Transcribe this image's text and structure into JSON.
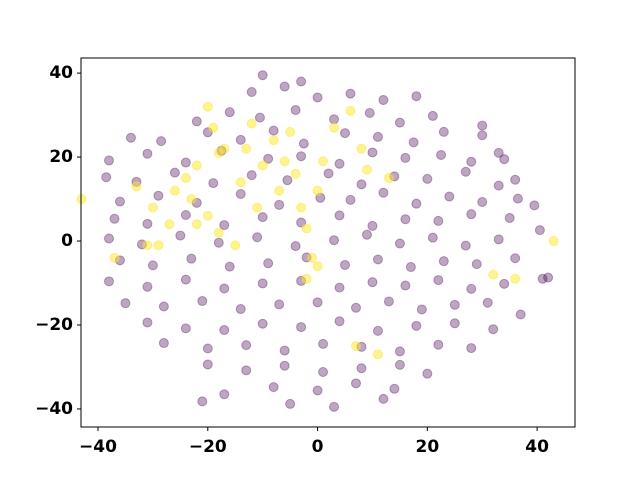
{
  "chart_data": {
    "type": "scatter",
    "xlim": [
      -43.1,
      46.9
    ],
    "ylim": [
      -44.3,
      43.6
    ],
    "xticks": [
      {
        "value": -40,
        "label": "−40"
      },
      {
        "value": -20,
        "label": "−20"
      },
      0,
      20,
      40
    ],
    "yticks": [
      {
        "value": -40,
        "label": "−40"
      },
      {
        "value": -20,
        "label": "−20"
      },
      0,
      20,
      40
    ],
    "series": [
      {
        "color": "#440154",
        "x": [
          -12,
          -6,
          0,
          6,
          12,
          18,
          -10,
          -3,
          -22,
          -16,
          -10.5,
          -4,
          3,
          9.5,
          15,
          21,
          30,
          -34,
          -28.5,
          -20,
          -14,
          -8,
          -2.5,
          5,
          11,
          17.5,
          23,
          30,
          33,
          -38,
          -31,
          -24,
          -17.5,
          -9,
          -3,
          4,
          10,
          16,
          22.5,
          28,
          34,
          -38.5,
          -33,
          -26,
          -19,
          -12,
          -5.5,
          2,
          8,
          14,
          20,
          27,
          33,
          36,
          -36,
          -29,
          -22,
          -14,
          -7,
          0.5,
          6,
          12,
          18,
          24,
          30,
          36.5,
          -37,
          -31,
          -24,
          -17,
          -10,
          -3,
          4,
          10,
          16,
          22,
          28,
          35,
          39.5,
          -38,
          -32,
          -25,
          -18,
          -11,
          -4,
          3,
          9,
          15,
          21,
          27,
          33,
          40.5,
          -36,
          -30,
          -23,
          -16,
          -9,
          -2,
          5,
          11,
          17,
          23,
          29,
          36,
          42,
          -38,
          -31,
          -24,
          -17,
          -10,
          -3,
          4,
          10,
          16,
          22,
          28,
          34,
          41,
          -35,
          -28,
          -21,
          -14,
          -7,
          0,
          7,
          13,
          19,
          25,
          31,
          37,
          -31,
          -24,
          -17,
          -10,
          -3,
          4,
          11,
          18,
          25,
          32,
          -28,
          -20,
          -13,
          -6,
          1,
          8,
          15,
          22,
          28,
          -20,
          -13,
          -6,
          1,
          8,
          15,
          20,
          -17,
          -8,
          0,
          7,
          14,
          -21,
          -5,
          3,
          12
        ],
        "values": [
          35.5,
          36.8,
          34.2,
          35.1,
          33.6,
          34.5,
          39.5,
          38,
          28.5,
          30.7,
          29.4,
          31.2,
          29,
          30.5,
          28.2,
          29.8,
          27.5,
          24.6,
          23.8,
          25.9,
          24.1,
          26.3,
          23.2,
          25.7,
          24.8,
          23.5,
          26,
          25.2,
          21,
          19.2,
          20.8,
          18.7,
          21.5,
          19.6,
          20.2,
          18.4,
          21.1,
          19.8,
          20.5,
          18.9,
          19.5,
          15.2,
          14.1,
          16.3,
          13.8,
          15.7,
          14.5,
          16.1,
          13.5,
          15.4,
          14.8,
          16.5,
          13.2,
          14.6,
          9.4,
          10.8,
          9.1,
          11.2,
          8.6,
          10.3,
          9.8,
          11.5,
          8.9,
          10.6,
          9.3,
          10.1,
          5.3,
          4.1,
          6.2,
          3.8,
          5.7,
          4.4,
          6.1,
          3.6,
          5.2,
          4.8,
          6.4,
          5.5,
          8.5,
          0.6,
          -0.8,
          1.3,
          -0.4,
          0.9,
          -1.2,
          0.2,
          1.5,
          -0.6,
          0.8,
          -1.1,
          0.4,
          2.6,
          -4.6,
          -5.8,
          -4.2,
          -6.1,
          -5.3,
          -3.9,
          -5.7,
          -4.4,
          -6.2,
          -4.8,
          -5.5,
          -4.1,
          -8.7,
          -9.6,
          -10.9,
          -9.2,
          -11.3,
          -10.1,
          -9.5,
          -11.1,
          -9.8,
          -10.6,
          -9.3,
          -11.4,
          -10.2,
          -9,
          -14.8,
          -15.6,
          -14.3,
          -16.2,
          -15.1,
          -14.6,
          -15.9,
          -14.4,
          -16.3,
          -15.2,
          -14.7,
          -17.5,
          -19.4,
          -20.8,
          -21.2,
          -19.7,
          -20.5,
          -19.1,
          -21.4,
          -20.2,
          -19.6,
          -21,
          -24.3,
          -25.6,
          -24.8,
          -26.1,
          -24.5,
          -25.2,
          -26.3,
          -24.7,
          -25.5,
          -29.4,
          -30.8,
          -29.7,
          -31.2,
          -30.3,
          -29.5,
          -31.6,
          -36.5,
          -34.8,
          -35.6,
          -33.9,
          -35.2,
          -38.2,
          -38.8,
          -39.5,
          -37.6
        ]
      },
      {
        "color": "#fde725",
        "x": [
          -43,
          -37,
          -33,
          -30,
          -29,
          -27,
          -26,
          -24,
          -23,
          -22,
          -20,
          -20,
          -19,
          -18,
          -17,
          -15,
          -14,
          -13,
          -12,
          -11,
          -10,
          -8,
          -7,
          -6,
          -5,
          -4,
          -3,
          -2,
          -1,
          0,
          -2,
          0,
          1,
          3,
          6,
          8,
          9,
          7,
          13,
          11,
          32,
          36,
          43,
          -31,
          -18,
          -22
        ],
        "values": [
          10,
          -4,
          13,
          8,
          -1,
          4,
          12,
          15,
          10,
          18,
          32,
          6,
          27,
          2,
          22,
          -1,
          14,
          22,
          28,
          8,
          18,
          24,
          12,
          19,
          26,
          16,
          8,
          3,
          -4,
          -6,
          -9,
          12,
          19,
          27,
          31,
          22,
          17,
          -25,
          15,
          -27,
          -8,
          -9,
          0,
          -1,
          21,
          4
        ]
      }
    ]
  }
}
